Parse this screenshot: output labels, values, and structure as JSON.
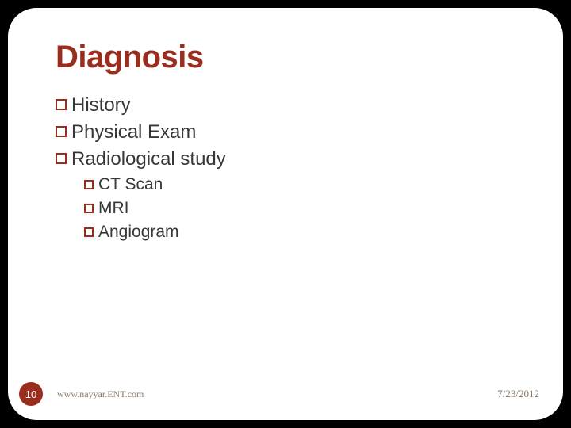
{
  "slide": {
    "title": "Diagnosis",
    "title_color": "#9b2d1f",
    "background_color": "#ffffff",
    "outer_background": "#000000",
    "border_radius": 36,
    "items_l1": [
      {
        "label": "History"
      },
      {
        "label": "Physical Exam"
      },
      {
        "label": "Radiological study"
      }
    ],
    "items_l2": [
      {
        "label": "CT Scan"
      },
      {
        "label": "MRI"
      },
      {
        "label": "Angiogram"
      }
    ],
    "bullet_border_color": "#9b2d1f",
    "text_color": "#383838",
    "l1_fontsize": 24,
    "l2_fontsize": 21
  },
  "footer": {
    "slide_number": "10",
    "url": "www.nayyar.ENT.com",
    "date": "7/23/2012",
    "badge_bg": "#9b2d1f",
    "badge_fg": "#ffffff",
    "text_color": "#8a7a68"
  }
}
